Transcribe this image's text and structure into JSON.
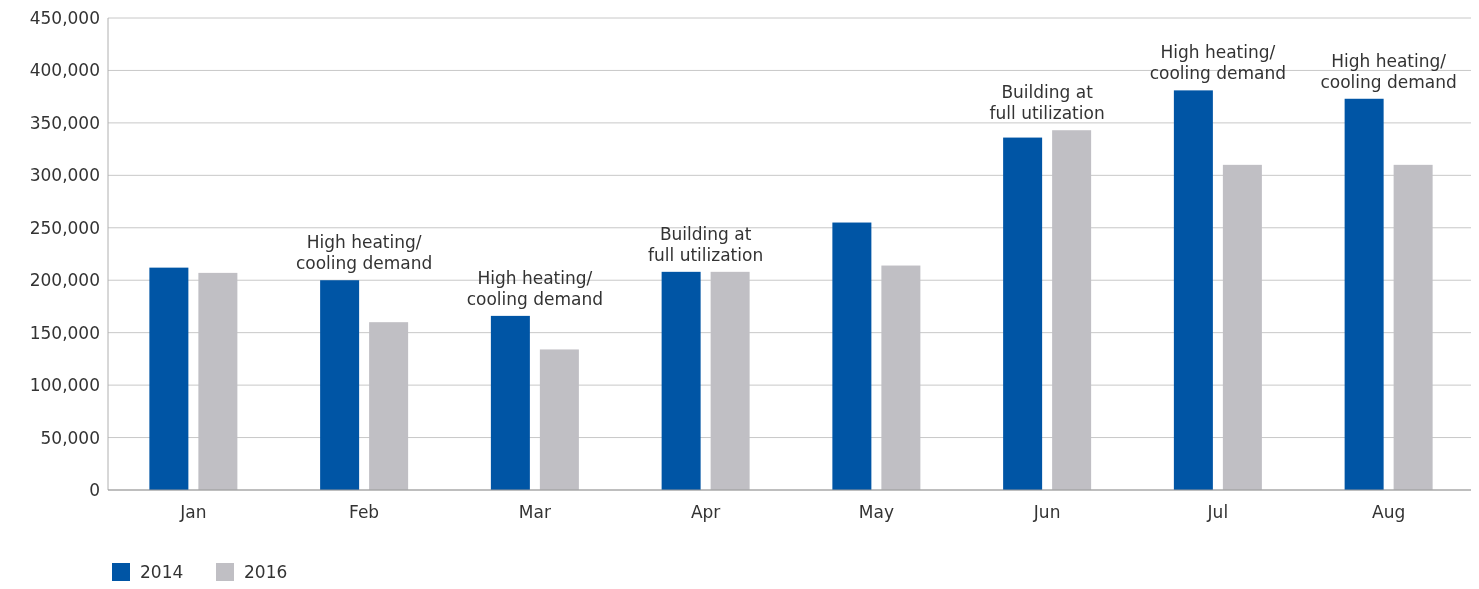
{
  "chart_data": {
    "type": "bar",
    "categories": [
      "Jan",
      "Feb",
      "Mar",
      "Apr",
      "May",
      "Jun",
      "Jul",
      "Aug"
    ],
    "series": [
      {
        "name": "2014",
        "color": "#0055a5",
        "values": [
          212000,
          200000,
          166000,
          208000,
          255000,
          336000,
          381000,
          373000
        ]
      },
      {
        "name": "2016",
        "color": "#c0bfc4",
        "values": [
          207000,
          160000,
          134000,
          208000,
          214000,
          343000,
          310000,
          310000
        ]
      }
    ],
    "ylim": [
      0,
      450000
    ],
    "yticks": [
      {
        "value": 0,
        "label": "0"
      },
      {
        "value": 50000,
        "label": "50,000"
      },
      {
        "value": 100000,
        "label": "100,000"
      },
      {
        "value": 150000,
        "label": "150,000"
      },
      {
        "value": 200000,
        "label": "200,000"
      },
      {
        "value": 250000,
        "label": "250,000"
      },
      {
        "value": 300000,
        "label": "300,000"
      },
      {
        "value": 350000,
        "label": "350,000"
      },
      {
        "value": 400000,
        "label": "400,000"
      },
      {
        "value": 450000,
        "label": "450,000"
      }
    ],
    "grid": "y",
    "legend": "bottom left",
    "annotations": [
      "High heating/\ncooling demand",
      "High heating/\ncooling demand",
      "Building at\nfull utilization",
      "Building at\nfull utilization",
      "High heating/\ncooling demand",
      "High heating/\ncooling demand"
    ]
  }
}
